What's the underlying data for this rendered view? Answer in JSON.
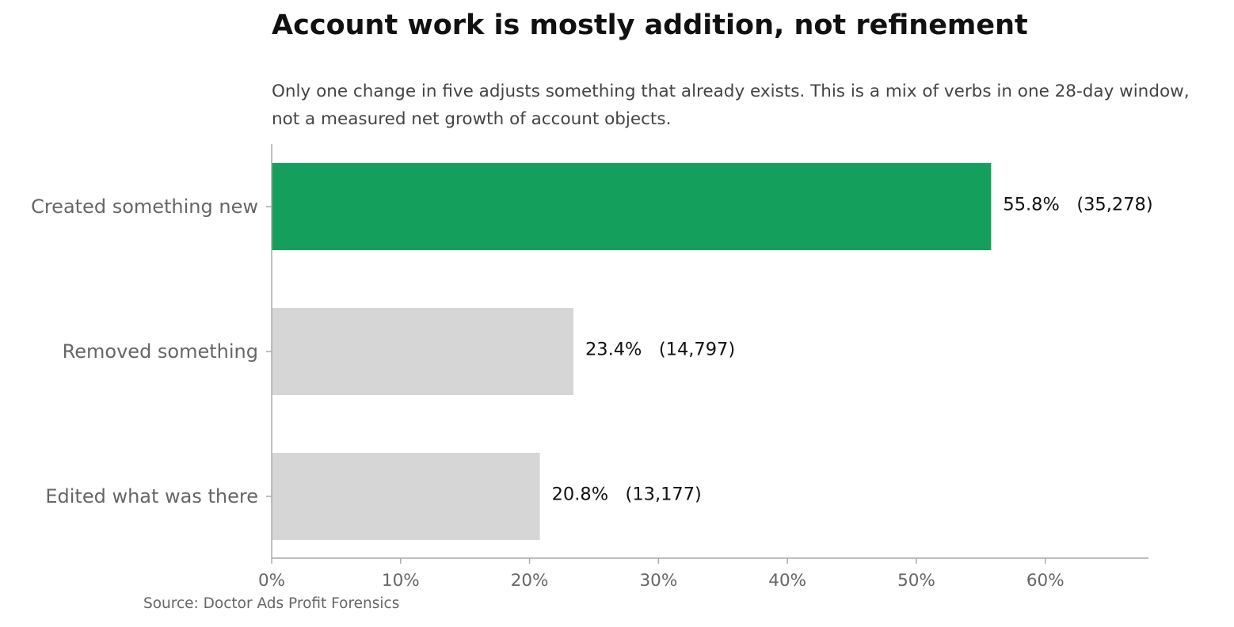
{
  "chart_data": {
    "type": "bar",
    "orientation": "horizontal",
    "title": "Account work is mostly addition, not refinement",
    "subtitle": "Only one change in five adjusts something that already exists. This is a mix of verbs in one 28-day window, not a measured net growth of account objects.",
    "source": "Source: Doctor Ads Profit Forensics",
    "categories": [
      "Created something new",
      "Removed something",
      "Edited what was there"
    ],
    "values": [
      55.8,
      23.4,
      20.8
    ],
    "counts": [
      35278,
      14797,
      13177
    ],
    "data_labels": [
      "55.8%   (35,278)",
      "23.4%   (14,797)",
      "20.8%   (13,177)"
    ],
    "xlim": [
      0,
      68
    ],
    "xticks": [
      0,
      10,
      20,
      30,
      40,
      50,
      60
    ],
    "xtick_labels": [
      "0%",
      "10%",
      "20%",
      "30%",
      "40%",
      "50%",
      "60%"
    ],
    "xlabel": "",
    "ylabel": "",
    "grid": false,
    "legend": "none",
    "colors": {
      "highlight": "#14a05c",
      "other": "#d6d6d6",
      "axis": "#aaaaaa"
    }
  }
}
